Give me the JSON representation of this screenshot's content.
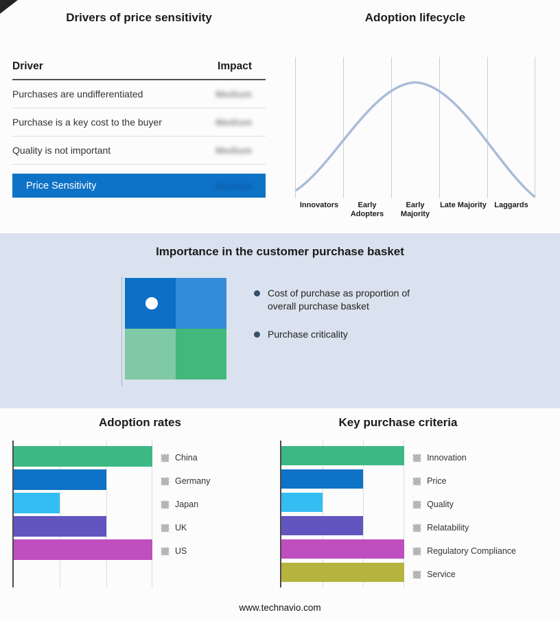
{
  "page": {
    "footer_url": "www.technavio.com"
  },
  "drivers_panel": {
    "title": "Drivers of price sensitivity",
    "columns": {
      "driver": "Driver",
      "impact": "Impact"
    },
    "rows": [
      {
        "driver": "Purchases are undifferentiated",
        "impact": "Medium"
      },
      {
        "driver": "Purchase is a key cost to the buyer",
        "impact": "Medium"
      },
      {
        "driver": "Quality is not important",
        "impact": "Medium"
      }
    ],
    "summary_row": {
      "label": "Price Sensitivity",
      "impact": "Medium"
    },
    "accent_color": "#0e72c6",
    "impact_blurred": true
  },
  "lifecycle_panel": {
    "title": "Adoption lifecycle"
  },
  "basket_panel": {
    "title": "Importance in the customer purchase basket",
    "band_color": "#d9e2ee",
    "quadrant_colors": [
      "#0d70c6",
      "#338ad8",
      "#7fc9a4",
      "#42b87c"
    ],
    "bullets": [
      {
        "text": "Cost of purchase as proportion of overall purchase basket"
      },
      {
        "text": "Purchase criticality"
      }
    ]
  },
  "chart_data": [
    {
      "id": "lifecycle",
      "type": "area",
      "title": "Adoption lifecycle",
      "categories": [
        "Innovators",
        "Early Adopters",
        "Early Majority",
        "Late Majority",
        "Laggards"
      ],
      "description": "Bell-shaped adoption curve peaking over the Early Majority segment",
      "curve_color": "#a9bdd8",
      "grid": true,
      "legend_position": "none"
    },
    {
      "id": "adoption",
      "type": "bar",
      "orientation": "horizontal",
      "title": "Adoption rates",
      "categories": [
        "China",
        "Germany",
        "Japan",
        "UK",
        "US"
      ],
      "values": [
        3,
        2,
        1,
        2,
        3
      ],
      "xmax": 3,
      "value_units": "relative gridline units (no numeric axis shown)",
      "colors": [
        "#3db885",
        "#0e72c6",
        "#33bdf2",
        "#6355bf",
        "#bf4fbf"
      ],
      "grid": true,
      "legend_position": "right"
    },
    {
      "id": "criteria",
      "type": "bar",
      "orientation": "horizontal",
      "title": "Key purchase criteria",
      "categories": [
        "Innovation",
        "Price",
        "Quality",
        "Relatability",
        "Regulatory Compliance",
        "Service"
      ],
      "values": [
        3,
        2,
        1,
        2,
        3,
        3
      ],
      "xmax": 3,
      "value_units": "relative gridline units (no numeric axis shown)",
      "colors": [
        "#3db885",
        "#0e72c6",
        "#33bdf2",
        "#6355bf",
        "#bf4fbf",
        "#b5b43f"
      ],
      "grid": true,
      "legend_position": "right"
    }
  ]
}
